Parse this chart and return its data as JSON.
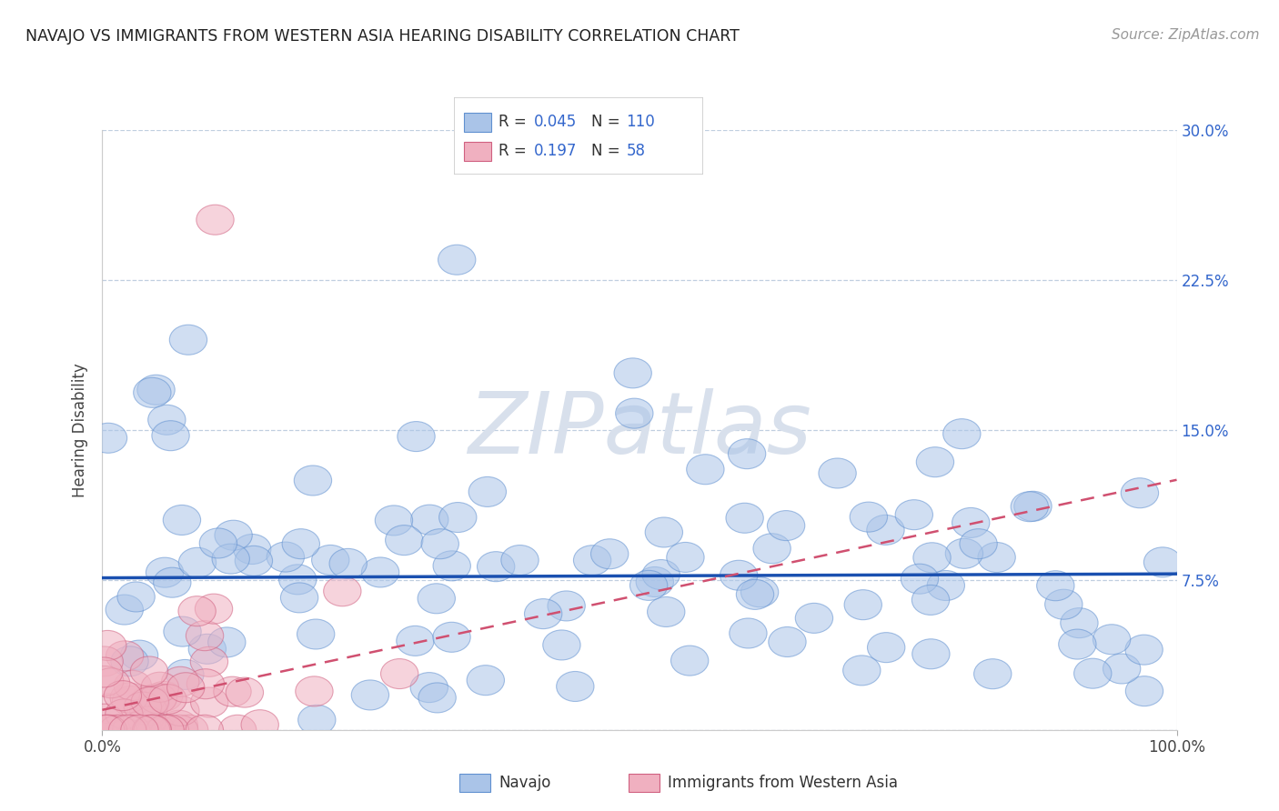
{
  "title": "NAVAJO VS IMMIGRANTS FROM WESTERN ASIA HEARING DISABILITY CORRELATION CHART",
  "source": "Source: ZipAtlas.com",
  "ylabel": "Hearing Disability",
  "xlim": [
    0,
    100
  ],
  "ylim": [
    0,
    30
  ],
  "yticks": [
    0,
    7.5,
    15.0,
    22.5,
    30.0
  ],
  "blue_color": "#aac4e8",
  "blue_edge": "#6090d0",
  "pink_color": "#f0b0c0",
  "pink_edge": "#d06080",
  "line_blue": "#1a50b0",
  "line_pink": "#d05070",
  "watermark": "ZIPatlas",
  "watermark_color": "#d8e0ec",
  "bg_color": "#ffffff",
  "grid_color": "#c0cfe0",
  "seed": 42,
  "nav_line_y0": 7.6,
  "nav_line_y1": 7.8,
  "immig_line_y0": 1.0,
  "immig_line_y1": 12.5
}
